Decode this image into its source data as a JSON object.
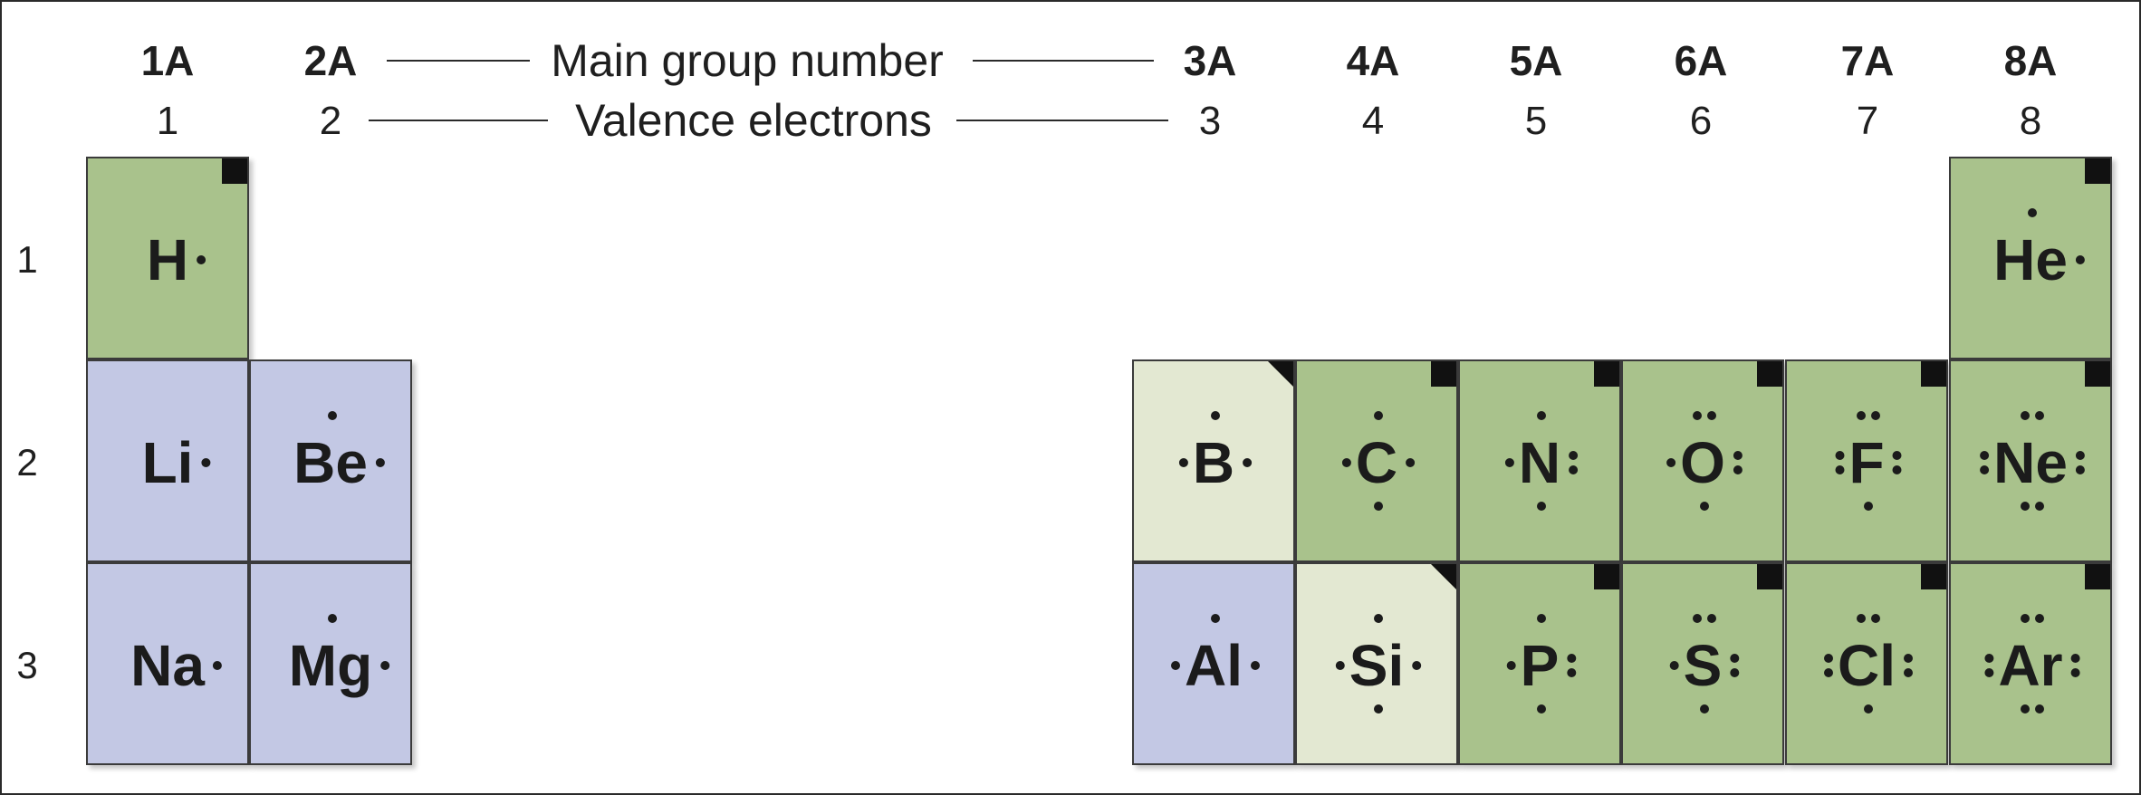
{
  "header": {
    "group_numbers": [
      "1A",
      "2A",
      "3A",
      "4A",
      "5A",
      "6A",
      "7A",
      "8A"
    ],
    "valence_counts": [
      "1",
      "2",
      "3",
      "4",
      "5",
      "6",
      "7",
      "8"
    ],
    "group_caption": "Main group number",
    "valence_caption": "Valence electrons"
  },
  "periods": [
    "1",
    "2",
    "3"
  ],
  "colors": {
    "metal": "#c3c8e4",
    "nonmetal": "#a9c28c",
    "metalloid": "#e3e8d2",
    "dot": "#1b1b1b"
  },
  "elements": [
    {
      "symbol": "H",
      "valence_electrons": 1,
      "group": "1A",
      "period": 1,
      "category": "nonmetal",
      "corner_marker": "square-marker"
    },
    {
      "symbol": "He",
      "valence_electrons": 2,
      "group": "8A",
      "period": 1,
      "category": "nonmetal",
      "corner_marker": "square-marker"
    },
    {
      "symbol": "Li",
      "valence_electrons": 1,
      "group": "1A",
      "period": 2,
      "category": "metal"
    },
    {
      "symbol": "Be",
      "valence_electrons": 2,
      "group": "2A",
      "period": 2,
      "category": "metal"
    },
    {
      "symbol": "B",
      "valence_electrons": 3,
      "group": "3A",
      "period": 2,
      "category": "metalloid",
      "corner_marker": "triangle-marker"
    },
    {
      "symbol": "C",
      "valence_electrons": 4,
      "group": "4A",
      "period": 2,
      "category": "nonmetal",
      "corner_marker": "square-marker"
    },
    {
      "symbol": "N",
      "valence_electrons": 5,
      "group": "5A",
      "period": 2,
      "category": "nonmetal",
      "corner_marker": "square-marker"
    },
    {
      "symbol": "O",
      "valence_electrons": 6,
      "group": "6A",
      "period": 2,
      "category": "nonmetal",
      "corner_marker": "square-marker"
    },
    {
      "symbol": "F",
      "valence_electrons": 7,
      "group": "7A",
      "period": 2,
      "category": "nonmetal",
      "corner_marker": "square-marker"
    },
    {
      "symbol": "Ne",
      "valence_electrons": 8,
      "group": "8A",
      "period": 2,
      "category": "nonmetal",
      "corner_marker": "square-marker"
    },
    {
      "symbol": "Na",
      "valence_electrons": 1,
      "group": "1A",
      "period": 3,
      "category": "metal"
    },
    {
      "symbol": "Mg",
      "valence_electrons": 2,
      "group": "2A",
      "period": 3,
      "category": "metal"
    },
    {
      "symbol": "Al",
      "valence_electrons": 3,
      "group": "3A",
      "period": 3,
      "category": "metal"
    },
    {
      "symbol": "Si",
      "valence_electrons": 4,
      "group": "4A",
      "period": 3,
      "category": "metalloid",
      "corner_marker": "triangle-marker"
    },
    {
      "symbol": "P",
      "valence_electrons": 5,
      "group": "5A",
      "period": 3,
      "category": "nonmetal",
      "corner_marker": "square-marker"
    },
    {
      "symbol": "S",
      "valence_electrons": 6,
      "group": "6A",
      "period": 3,
      "category": "nonmetal",
      "corner_marker": "square-marker"
    },
    {
      "symbol": "Cl",
      "valence_electrons": 7,
      "group": "7A",
      "period": 3,
      "category": "nonmetal",
      "corner_marker": "square-marker"
    },
    {
      "symbol": "Ar",
      "valence_electrons": 8,
      "group": "8A",
      "period": 3,
      "category": "nonmetal",
      "corner_marker": "square-marker"
    }
  ]
}
